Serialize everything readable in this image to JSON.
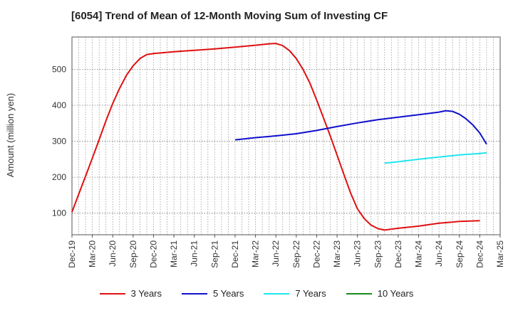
{
  "chart_data": {
    "type": "line",
    "title": "[6054]  Trend of Mean of 12-Month Moving Sum of Investing CF",
    "ylabel": "Amount (million yen)",
    "xlabel": "",
    "x_ticks": [
      "Dec-19",
      "Mar-20",
      "Jun-20",
      "Sep-20",
      "Dec-20",
      "Mar-21",
      "Jun-21",
      "Sep-21",
      "Dec-21",
      "Mar-22",
      "Jun-22",
      "Sep-22",
      "Dec-22",
      "Mar-23",
      "Jun-23",
      "Sep-23",
      "Dec-23",
      "Mar-24",
      "Jun-24",
      "Sep-24",
      "Dec-24",
      "Mar-25"
    ],
    "y_ticks": [
      100,
      200,
      300,
      400,
      500
    ],
    "ylim": [
      40,
      590
    ],
    "grid": true,
    "legend_position": "bottom",
    "series": [
      {
        "name": "3 Years",
        "color": "#e01010",
        "points": [
          [
            "Dec-19",
            103
          ],
          [
            "Jan-20",
            153
          ],
          [
            "Feb-20",
            203
          ],
          [
            "Mar-20",
            253
          ],
          [
            "Apr-20",
            305
          ],
          [
            "May-20",
            357
          ],
          [
            "Jun-20",
            405
          ],
          [
            "Jul-20",
            447
          ],
          [
            "Aug-20",
            483
          ],
          [
            "Sep-20",
            510
          ],
          [
            "Oct-20",
            530
          ],
          [
            "Nov-20",
            541
          ],
          [
            "Dec-20",
            544
          ],
          [
            "Mar-21",
            549
          ],
          [
            "Jun-21",
            553
          ],
          [
            "Sep-21",
            557
          ],
          [
            "Dec-21",
            562
          ],
          [
            "Mar-22",
            567
          ],
          [
            "May-22",
            571
          ],
          [
            "Jun-22",
            572
          ],
          [
            "Jul-22",
            566
          ],
          [
            "Aug-22",
            552
          ],
          [
            "Sep-22",
            530
          ],
          [
            "Oct-22",
            500
          ],
          [
            "Nov-22",
            462
          ],
          [
            "Dec-22",
            415
          ],
          [
            "Jan-23",
            365
          ],
          [
            "Feb-23",
            315
          ],
          [
            "Mar-23",
            262
          ],
          [
            "Apr-23",
            208
          ],
          [
            "May-23",
            156
          ],
          [
            "Jun-23",
            112
          ],
          [
            "Jul-23",
            85
          ],
          [
            "Aug-23",
            67
          ],
          [
            "Sep-23",
            57
          ],
          [
            "Oct-23",
            53
          ],
          [
            "Dec-23",
            58
          ],
          [
            "Mar-24",
            64
          ],
          [
            "Jun-24",
            72
          ],
          [
            "Sep-24",
            77
          ],
          [
            "Dec-24",
            79
          ]
        ]
      },
      {
        "name": "5 Years",
        "color": "#1010cc",
        "points": [
          [
            "Dec-21",
            304
          ],
          [
            "Mar-22",
            310
          ],
          [
            "Jun-22",
            315
          ],
          [
            "Sep-22",
            321
          ],
          [
            "Dec-22",
            330
          ],
          [
            "Mar-23",
            341
          ],
          [
            "Jun-23",
            351
          ],
          [
            "Sep-23",
            360
          ],
          [
            "Dec-23",
            367
          ],
          [
            "Mar-24",
            374
          ],
          [
            "Jun-24",
            381
          ],
          [
            "Jul-24",
            385
          ],
          [
            "Aug-24",
            383
          ],
          [
            "Sep-24",
            375
          ],
          [
            "Oct-24",
            362
          ],
          [
            "Nov-24",
            345
          ],
          [
            "Dec-24",
            323
          ],
          [
            "Jan-25",
            292
          ]
        ]
      },
      {
        "name": "7 Years",
        "color": "#22e5ee",
        "points": [
          [
            "Oct-23",
            239
          ],
          [
            "Dec-23",
            243
          ],
          [
            "Mar-24",
            250
          ],
          [
            "Jun-24",
            256
          ],
          [
            "Sep-24",
            262
          ],
          [
            "Dec-24",
            266
          ],
          [
            "Jan-25",
            268
          ]
        ]
      },
      {
        "name": "10 Years",
        "color": "#1a8a1a",
        "points": []
      }
    ]
  }
}
